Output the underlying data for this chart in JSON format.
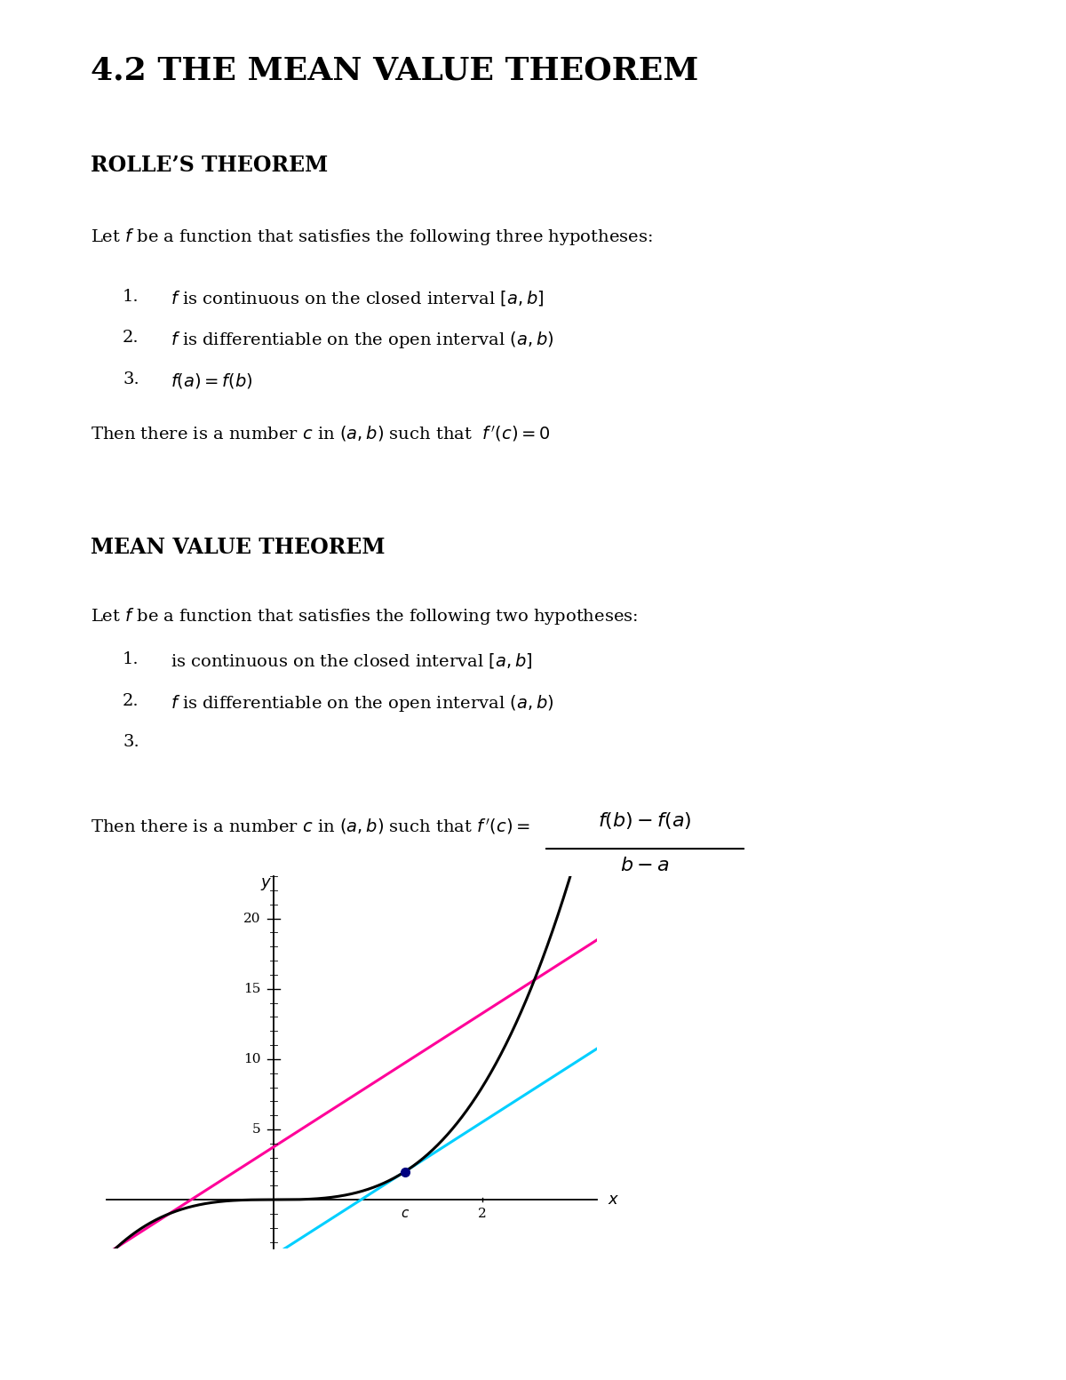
{
  "title": "4.2 THE MEAN VALUE THEOREM",
  "title_fontsize": 26,
  "title_fontweight": "bold",
  "background_color": "#ffffff",
  "rolles_header": "ROLLE’S THEOREM",
  "rolles_header_fontsize": 17,
  "rolles_header_fontweight": "bold",
  "rolles_intro": "Let $f$ be a function that satisfies the following three hypotheses:",
  "rolles_item1": "$f$ is continuous on the closed interval $[a,b]$",
  "rolles_item2": "$f$ is differentiable on the open interval $(a,b)$",
  "rolles_item3": "$f(a)$$=$$f(b)$",
  "rolles_conclusion_pre": "Then there is a number $c$ in $(a,b)$ such that  ",
  "rolles_conclusion_math": "$f\\,'(c) = 0$",
  "mvt_header": "MEAN VALUE THEOREM",
  "mvt_header_fontsize": 17,
  "mvt_header_fontweight": "bold",
  "mvt_intro": "Let $f$ be a function that satisfies the following two hypotheses:",
  "mvt_item1": "is continuous on the closed interval $[a,b]$",
  "mvt_item2": "$f$ is differentiable on the open interval $(a,b)$",
  "mvt_item3": "",
  "mvt_conclusion_pre": "Then there is a number $c$ in $(a,b)$ such that $f\\,'(c)=$",
  "mvt_frac_num": "$f(b) - f(a)$",
  "mvt_frac_den": "$b - a$",
  "graph_xlim": [
    -1.6,
    3.1
  ],
  "graph_ylim": [
    -3.5,
    23
  ],
  "graph_yticks": [
    5,
    10,
    15,
    20
  ],
  "curve_color": "#000000",
  "cyan_color": "#00cfff",
  "magenta_color": "#ff0099",
  "point_color": "#000080",
  "text_fontsize": 14,
  "item_fontsize": 14
}
